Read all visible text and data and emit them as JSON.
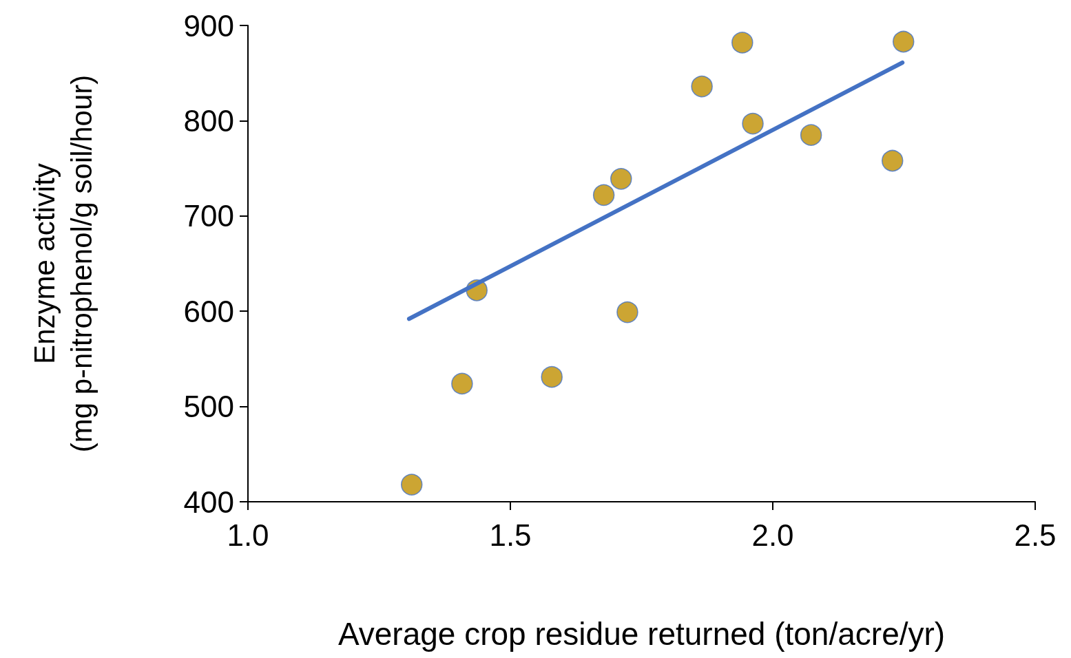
{
  "chart_data": {
    "type": "scatter",
    "xlabel": "Average crop residue returned (ton/acre/yr)",
    "ylabel": "Enzyme activity\n(mg p-nitrophenol/g soil/hour)",
    "x": [
      1.312,
      1.408,
      1.436,
      1.579,
      1.678,
      1.711,
      1.723,
      1.865,
      1.942,
      1.962,
      2.073,
      2.228,
      2.249
    ],
    "series": [
      {
        "color": "#bf8f00",
        "values": [
          418,
          524,
          622,
          531,
          722,
          739,
          599,
          836,
          882,
          797,
          785,
          758,
          883
        ]
      },
      {
        "type": "line",
        "color": "#4472c4",
        "x": [
          1.307,
          2.247
        ],
        "values": [
          592,
          861
        ],
        "marker": "none"
      }
    ],
    "marker": "circle",
    "xlim": [
      1.0,
      2.5
    ],
    "xticks": [
      {
        "value": 1.0,
        "label": "1.0"
      },
      1.5,
      {
        "value": 2.0,
        "label": "2.0"
      },
      2.5
    ],
    "ylim": [
      400,
      900
    ],
    "yticks": [
      400,
      500,
      600,
      700,
      800,
      900
    ],
    "grid": false
  }
}
